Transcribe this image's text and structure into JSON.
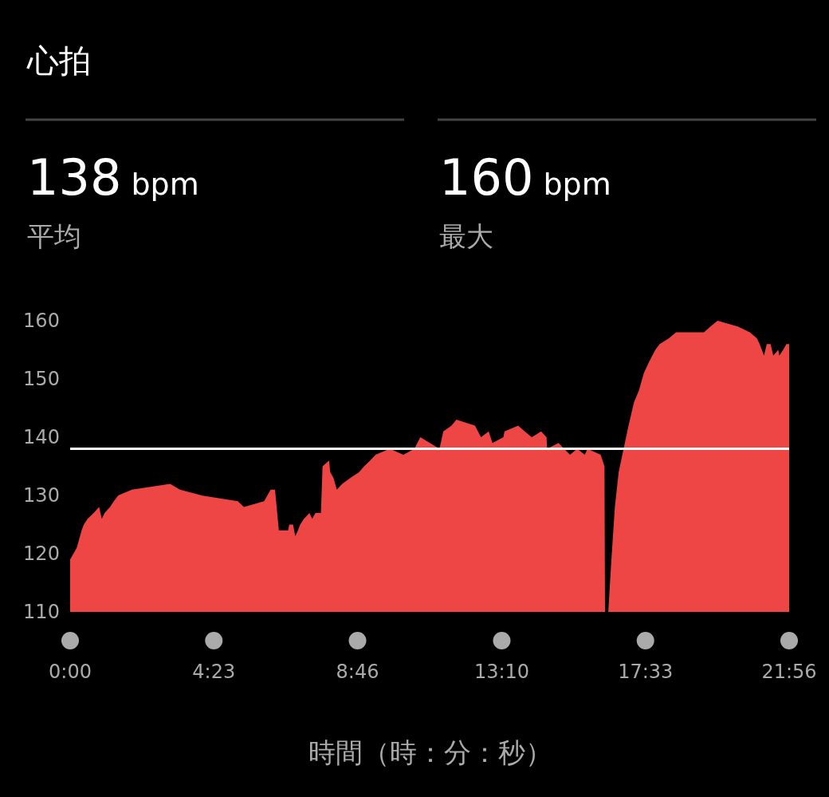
{
  "chart_data": {
    "type": "area",
    "title": "心拍",
    "xlabel": "時間（時：分：秒）",
    "annotations": [
      "138 bpm",
      "平均",
      "160 bpm",
      "最大"
    ],
    "x": [
      0,
      12,
      15,
      21,
      25,
      32,
      43,
      53,
      58,
      63,
      73,
      80,
      88,
      113,
      183,
      201,
      241,
      307,
      318,
      355,
      367,
      375,
      382,
      399,
      401,
      408,
      412,
      417,
      421,
      428,
      438,
      443,
      449,
      459,
      462,
      474,
      476,
      482,
      488,
      498,
      513,
      529,
      538,
      549,
      559,
      585,
      610,
      630,
      641,
      676,
      683,
      698,
      707,
      741,
      752,
      766,
      773,
      793,
      795,
      820,
      832,
      845,
      862,
      872,
      873,
      894,
      904,
      915,
      928,
      942,
      947,
      971,
      978,
      979,
      985,
      990,
      997,
      1004,
      1013,
      1022,
      1032,
      1041,
      1050,
      1060,
      1071,
      1079,
      1096,
      1109,
      1160,
      1172,
      1185,
      1222,
      1244,
      1257,
      1262,
      1270,
      1275,
      1282,
      1287,
      1296,
      1298,
      1305,
      1311,
      1316
    ],
    "series": [
      {
        "color": "#ee4545",
        "values": [
          119,
          121,
          122,
          124,
          125,
          126,
          127,
          128,
          126,
          127,
          128,
          129,
          130,
          131,
          132,
          131,
          130,
          129,
          128,
          129,
          131,
          131,
          124,
          124,
          125,
          125,
          123,
          124,
          125,
          126,
          127,
          126,
          127,
          127,
          135,
          136,
          134,
          133,
          131,
          132,
          133,
          134,
          135,
          136,
          137,
          138,
          137,
          138,
          140,
          138,
          141,
          142,
          143,
          142,
          140,
          141,
          139,
          140,
          141,
          142,
          141,
          140,
          141,
          140,
          138,
          139,
          138,
          137,
          138,
          137,
          138,
          137,
          135,
          110,
          110,
          118,
          128,
          134,
          138,
          142,
          146,
          148,
          151,
          153,
          155,
          156,
          157,
          158,
          158,
          159,
          160,
          159,
          158,
          157,
          156,
          154,
          156,
          156,
          154,
          155,
          154,
          155,
          156,
          156
        ]
      }
    ],
    "xlim": [
      0,
      1316
    ],
    "xticks": [
      {
        "value": 0,
        "label": "0:00"
      },
      {
        "value": 263,
        "label": "4:23"
      },
      {
        "value": 526,
        "label": "8:46"
      },
      {
        "value": 790,
        "label": "13:10"
      },
      {
        "value": 1053,
        "label": "17:33"
      },
      {
        "value": 1316,
        "label": "21:56"
      }
    ],
    "ylim": [
      110,
      160
    ],
    "yticks": [
      110,
      120,
      130,
      140,
      150,
      160
    ],
    "ref_lines": [
      {
        "axis": "y",
        "value": 138,
        "color": "#ffffff"
      }
    ],
    "grid": false,
    "marker": "none"
  }
}
